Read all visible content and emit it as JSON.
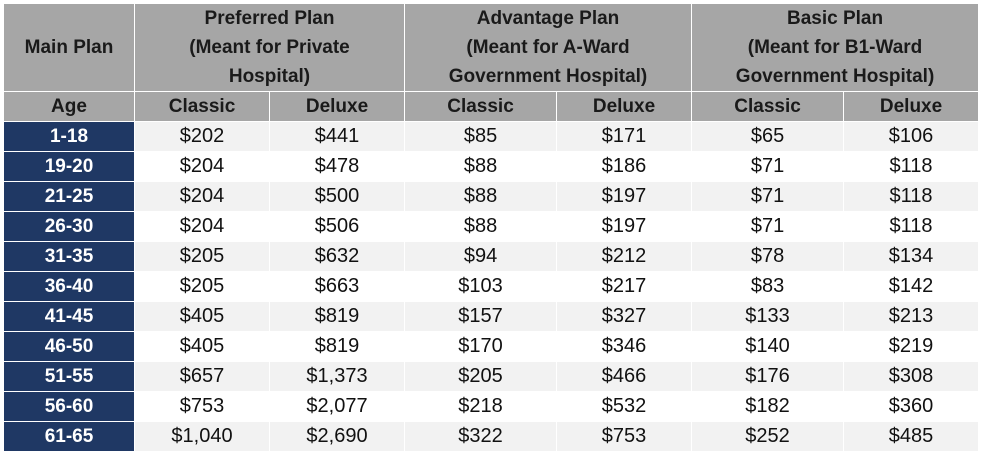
{
  "header": {
    "main_plan_label": "Main Plan",
    "age_label": "Age",
    "plans": [
      {
        "name_line1": "Preferred Plan",
        "name_line2": "(Meant for Private",
        "name_line3": "Hospital)"
      },
      {
        "name_line1": "Advantage Plan",
        "name_line2": "(Meant for A-Ward",
        "name_line3": "Government Hospital)"
      },
      {
        "name_line1": "Basic Plan",
        "name_line2": "(Meant for B1-Ward",
        "name_line3": "Government Hospital)"
      }
    ],
    "sub_columns": [
      "Classic",
      "Deluxe",
      "Classic",
      "Deluxe",
      "Classic",
      "Deluxe"
    ]
  },
  "rows": [
    {
      "age": "1-18",
      "values": [
        "$202",
        "$441",
        "$85",
        "$171",
        "$65",
        "$106"
      ]
    },
    {
      "age": "19-20",
      "values": [
        "$204",
        "$478",
        "$88",
        "$186",
        "$71",
        "$118"
      ]
    },
    {
      "age": "21-25",
      "values": [
        "$204",
        "$500",
        "$88",
        "$197",
        "$71",
        "$118"
      ]
    },
    {
      "age": "26-30",
      "values": [
        "$204",
        "$506",
        "$88",
        "$197",
        "$71",
        "$118"
      ]
    },
    {
      "age": "31-35",
      "values": [
        "$205",
        "$632",
        "$94",
        "$212",
        "$78",
        "$134"
      ]
    },
    {
      "age": "36-40",
      "values": [
        "$205",
        "$663",
        "$103",
        "$217",
        "$83",
        "$142"
      ]
    },
    {
      "age": "41-45",
      "values": [
        "$405",
        "$819",
        "$157",
        "$327",
        "$133",
        "$213"
      ]
    },
    {
      "age": "46-50",
      "values": [
        "$405",
        "$819",
        "$170",
        "$346",
        "$140",
        "$219"
      ]
    },
    {
      "age": "51-55",
      "values": [
        "$657",
        "$1,373",
        "$205",
        "$466",
        "$176",
        "$308"
      ]
    },
    {
      "age": "56-60",
      "values": [
        "$753",
        "$2,077",
        "$218",
        "$532",
        "$182",
        "$360"
      ]
    },
    {
      "age": "61-65",
      "values": [
        "$1,040",
        "$2,690",
        "$322",
        "$753",
        "$252",
        "$485"
      ]
    }
  ]
}
